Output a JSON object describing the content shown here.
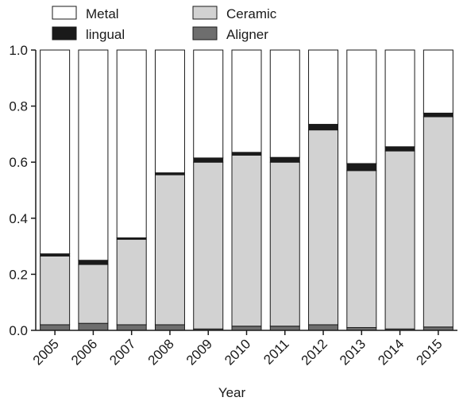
{
  "chart_data": {
    "type": "bar",
    "stacked": true,
    "title": "",
    "xlabel": "Year",
    "ylabel": "",
    "ylim": [
      0,
      1.0
    ],
    "yticks": [
      "0.0",
      "0.2",
      "0.4",
      "0.6",
      "0.8",
      "1.0"
    ],
    "categories": [
      "2005",
      "2006",
      "2007",
      "2008",
      "2009",
      "2010",
      "2011",
      "2012",
      "2013",
      "2014",
      "2015"
    ],
    "series": [
      {
        "name": "Aligner",
        "color": "#6e6e6e",
        "values": [
          0.02,
          0.025,
          0.02,
          0.02,
          0.005,
          0.015,
          0.015,
          0.02,
          0.01,
          0.005,
          0.012
        ]
      },
      {
        "name": "Ceramic",
        "color": "#d2d2d2",
        "values": [
          0.245,
          0.21,
          0.305,
          0.535,
          0.595,
          0.61,
          0.585,
          0.695,
          0.56,
          0.635,
          0.75
        ]
      },
      {
        "name": "lingual",
        "color": "#1a1a1a",
        "values": [
          0.008,
          0.015,
          0.005,
          0.007,
          0.015,
          0.01,
          0.017,
          0.02,
          0.025,
          0.015,
          0.013
        ]
      },
      {
        "name": "Metal",
        "color": "#ffffff",
        "values": [
          0.727,
          0.75,
          0.67,
          0.438,
          0.385,
          0.365,
          0.383,
          0.265,
          0.405,
          0.345,
          0.225
        ]
      }
    ],
    "legend": {
      "placement": "top-left",
      "order": [
        "Metal",
        "lingual",
        "Ceramic",
        "Aligner"
      ]
    },
    "grid": false
  }
}
